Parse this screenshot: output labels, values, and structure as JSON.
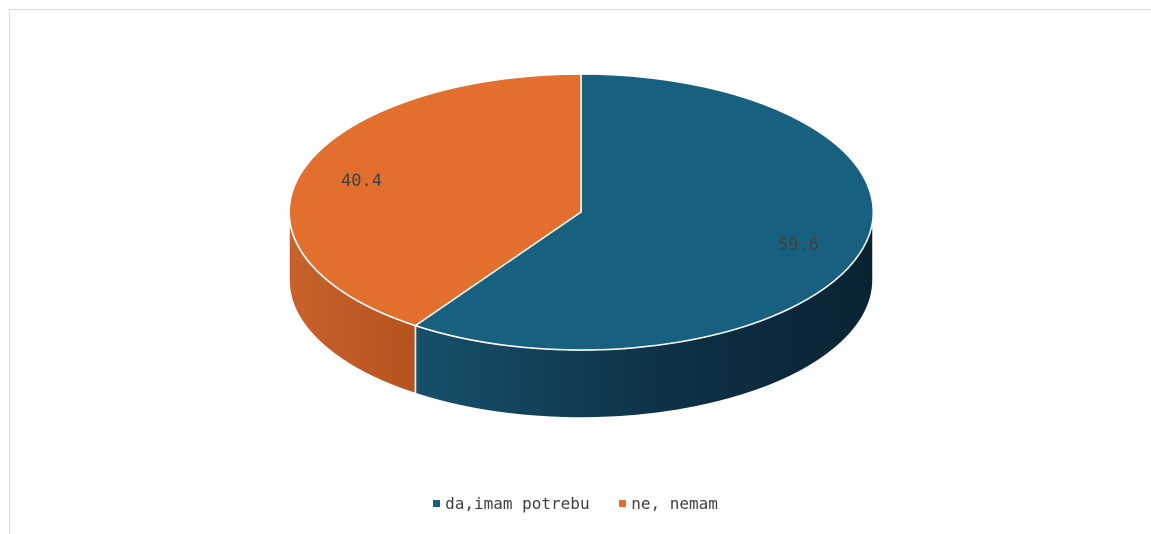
{
  "chart_data": {
    "type": "pie",
    "title": "",
    "three_d": true,
    "legend_position": "bottom",
    "slices": [
      {
        "label": "da,imam potrebu",
        "value": 59.6,
        "data_label": "59.6",
        "color": "#17607f"
      },
      {
        "label": "ne, nemam",
        "value": 40.4,
        "data_label": "40.4",
        "color": "#e36f2f"
      }
    ]
  }
}
